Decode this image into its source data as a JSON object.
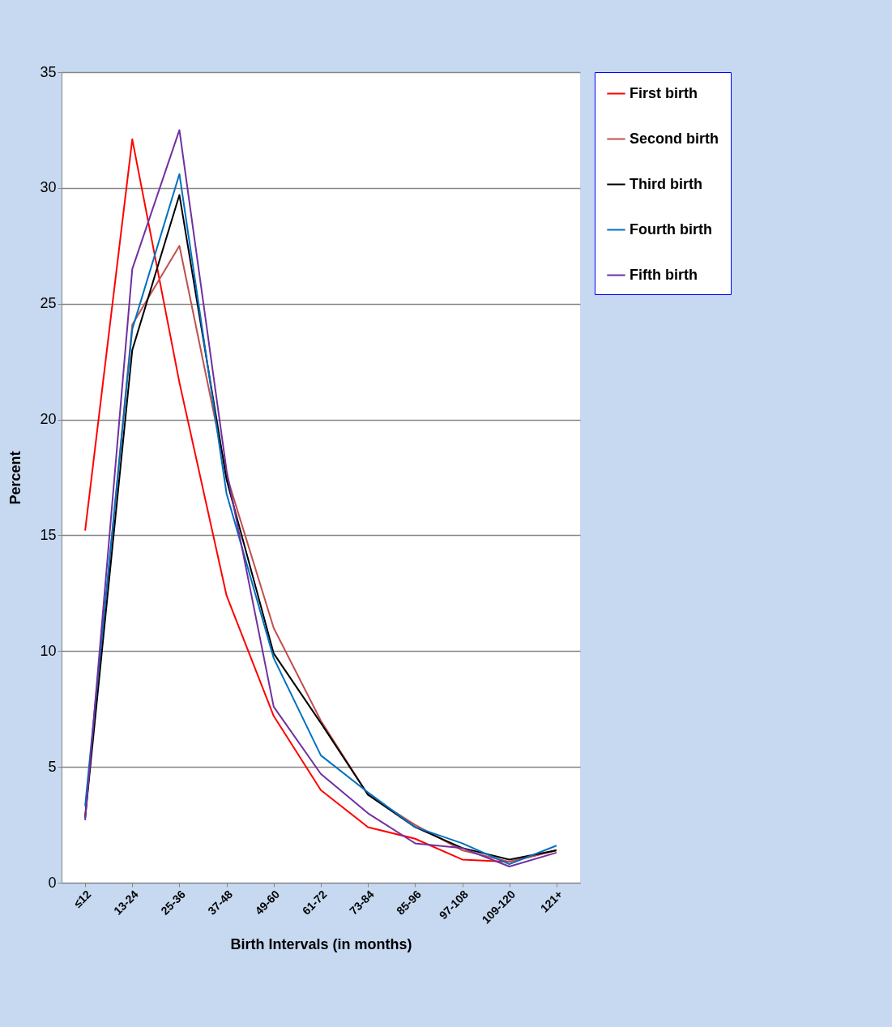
{
  "chart_data": {
    "type": "line",
    "xlabel": "Birth Intervals (in months)",
    "ylabel": "Percent",
    "categories": [
      "≤12",
      "13-24",
      "25-36",
      "37-48",
      "49-60",
      "61-72",
      "73-84",
      "85-96",
      "97-108",
      "109-120",
      "121+"
    ],
    "series": [
      {
        "name": "First birth",
        "color": "#ff0000",
        "values": [
          15.2,
          32.1,
          21.6,
          12.4,
          7.2,
          4.0,
          2.4,
          1.9,
          1.0,
          0.9,
          1.4
        ]
      },
      {
        "name": "Second birth",
        "color": "#c0504d",
        "values": [
          2.9,
          24.1,
          27.5,
          17.6,
          11.0,
          7.0,
          3.8,
          2.5,
          1.4,
          0.9,
          1.4
        ]
      },
      {
        "name": "Third birth",
        "color": "#000000",
        "values": [
          2.8,
          23.0,
          29.7,
          17.4,
          9.9,
          6.9,
          3.8,
          2.4,
          1.5,
          1.0,
          1.4
        ]
      },
      {
        "name": "Fourth birth",
        "color": "#0070c0",
        "values": [
          3.3,
          23.9,
          30.6,
          16.8,
          9.7,
          5.5,
          3.9,
          2.4,
          1.7,
          0.8,
          1.6
        ]
      },
      {
        "name": "Fifth birth",
        "color": "#7030a0",
        "values": [
          2.7,
          26.5,
          32.5,
          17.8,
          7.6,
          4.7,
          3.0,
          1.7,
          1.5,
          0.7,
          1.3
        ]
      }
    ],
    "ylim": [
      0,
      35
    ],
    "yticks": [
      0,
      5,
      10,
      15,
      20,
      25,
      30,
      35
    ],
    "grid": "y",
    "legend": "right",
    "marker": "none",
    "line_style": "solid"
  }
}
